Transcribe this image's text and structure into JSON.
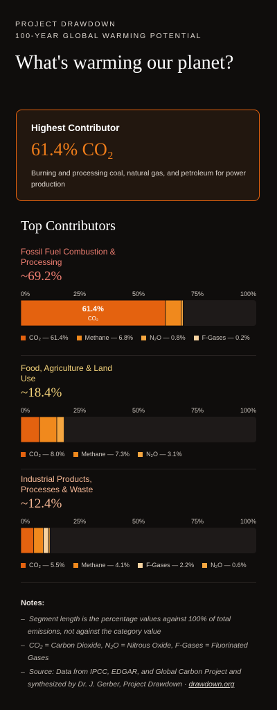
{
  "header": {
    "kicker": "PROJECT DRAWDOWN",
    "subkicker": "100-YEAR GLOBAL WARMING POTENTIAL",
    "title": "What's warming our planet?"
  },
  "highlight": {
    "label": "Highest Contributor",
    "value": "61.4% CO₂",
    "description": "Burning and processing coal, natural gas, and petroleum for power production"
  },
  "section_title": "Top Contributors",
  "chart_data": [
    {
      "type": "stacked-bar",
      "title": "Fossil Fuel Combustion & Processing",
      "subtitle": "~69.2%",
      "accent_color": "#f07f72",
      "xlim": [
        0,
        100
      ],
      "xticks": [
        {
          "value": 0,
          "label": "0%"
        },
        {
          "value": 25,
          "label": "25%"
        },
        {
          "value": 50,
          "label": "50%"
        },
        {
          "value": 75,
          "label": "75%"
        },
        {
          "value": 100,
          "label": "100%"
        }
      ],
      "series": [
        {
          "name": "CO₂",
          "color": "#e4620f",
          "values": [
            61.4
          ],
          "value_labels": [
            "61.4%"
          ],
          "show_label": true
        },
        {
          "name": "Methane",
          "color": "#f0891d",
          "values": [
            6.8
          ]
        },
        {
          "name": "N₂O",
          "color": "#f5a640",
          "values": [
            0.8
          ]
        },
        {
          "name": "F-Gases",
          "color": "#f7d3a1",
          "values": [
            0.2
          ]
        }
      ],
      "legend": [
        "CO₂ — 61.4%",
        "Methane — 6.8%",
        "N₂O — 0.8%",
        "F-Gases — 0.2%"
      ]
    },
    {
      "type": "stacked-bar",
      "title": "Food, Agriculture & Land Use",
      "subtitle": "~18.4%",
      "accent_color": "#f3d27a",
      "xlim": [
        0,
        100
      ],
      "xticks": [
        {
          "value": 0,
          "label": "0%"
        },
        {
          "value": 25,
          "label": "25%"
        },
        {
          "value": 50,
          "label": "50%"
        },
        {
          "value": 75,
          "label": "75%"
        },
        {
          "value": 100,
          "label": "100%"
        }
      ],
      "series": [
        {
          "name": "CO₂",
          "color": "#e4620f",
          "values": [
            8.0
          ]
        },
        {
          "name": "Methane",
          "color": "#f0891d",
          "values": [
            7.3
          ]
        },
        {
          "name": "N₂O",
          "color": "#f5a640",
          "values": [
            3.1
          ]
        }
      ],
      "legend": [
        "CO₂ — 8.0%",
        "Methane — 7.3%",
        "N₂O — 3.1%"
      ]
    },
    {
      "type": "stacked-bar",
      "title": "Industrial Products, Processes & Waste",
      "subtitle": "~12.4%",
      "accent_color": "#f5b896",
      "xlim": [
        0,
        100
      ],
      "xticks": [
        {
          "value": 0,
          "label": "0%"
        },
        {
          "value": 25,
          "label": "25%"
        },
        {
          "value": 50,
          "label": "50%"
        },
        {
          "value": 75,
          "label": "75%"
        },
        {
          "value": 100,
          "label": "100%"
        }
      ],
      "series": [
        {
          "name": "CO₂",
          "color": "#e4620f",
          "values": [
            5.5
          ]
        },
        {
          "name": "Methane",
          "color": "#f0891d",
          "values": [
            4.1
          ]
        },
        {
          "name": "F-Gases",
          "color": "#f7d3a1",
          "values": [
            2.2
          ]
        },
        {
          "name": "N₂O",
          "color": "#f5a640",
          "values": [
            0.6
          ]
        }
      ],
      "legend": [
        "CO₂ — 5.5%",
        "Methane — 4.1%",
        "F-Gases — 2.2%",
        "N₂O — 0.6%"
      ]
    }
  ],
  "notes": {
    "title": "Notes:",
    "items": [
      {
        "text": "Segment length is the percentage values against 100% of total emissions, not against the category value"
      },
      {
        "text": "CO₂ = Carbon Dioxide, N₂O = Nitrous Oxide, F-Gases = Fluorinated Gases"
      },
      {
        "text": "Source: Data from IPCC, EDGAR, and Global Carbon Project and synthesized by Dr. J. Gerber, Project Drawdown ·",
        "link": "drawdown.org"
      }
    ]
  }
}
